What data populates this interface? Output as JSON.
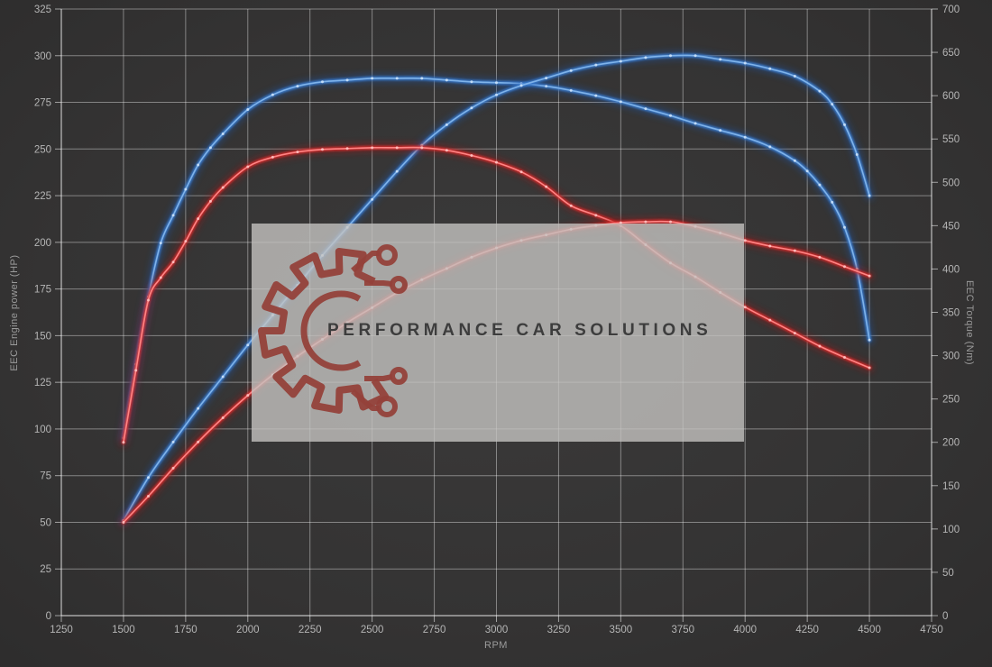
{
  "watermark": {
    "brand": "PERFORMANCE CAR SOLUTIONS"
  },
  "chart_data": {
    "type": "line",
    "title": "",
    "grid": true,
    "legend": "none",
    "x_axis": {
      "label": "RPM",
      "min": 1250,
      "max": 4750,
      "ticks": [
        1250,
        1500,
        1750,
        2000,
        2250,
        2500,
        2750,
        3000,
        3250,
        3500,
        3750,
        4000,
        4250,
        4500,
        4750
      ]
    },
    "y_left": {
      "label": "EEC Engine power (HP)",
      "min": 0,
      "max": 325,
      "ticks": [
        0,
        25,
        50,
        75,
        100,
        125,
        150,
        175,
        200,
        225,
        250,
        275,
        300,
        325
      ]
    },
    "y_right": {
      "label": "EEC Torque (Nm)",
      "min": 0,
      "max": 700,
      "ticks": [
        0,
        50,
        100,
        150,
        200,
        250,
        300,
        350,
        400,
        450,
        500,
        550,
        600,
        650,
        700
      ]
    },
    "series": [
      {
        "name": "blue-torque-curve",
        "axis": "right",
        "unit": "Nm",
        "color_glow": "#1d55a8",
        "color_mid": "#3b7ed2",
        "color_core": "#7fb3ea",
        "color_marker": "#cfe4fa",
        "points": [
          [
            1500,
            205
          ],
          [
            1550,
            290
          ],
          [
            1600,
            368
          ],
          [
            1650,
            430
          ],
          [
            1700,
            462
          ],
          [
            1750,
            492
          ],
          [
            1800,
            520
          ],
          [
            1850,
            540
          ],
          [
            1900,
            556
          ],
          [
            2000,
            584
          ],
          [
            2100,
            601
          ],
          [
            2200,
            611
          ],
          [
            2300,
            616
          ],
          [
            2400,
            618
          ],
          [
            2500,
            620
          ],
          [
            2600,
            620
          ],
          [
            2700,
            620
          ],
          [
            2800,
            618
          ],
          [
            2900,
            616
          ],
          [
            3000,
            615
          ],
          [
            3100,
            614
          ],
          [
            3200,
            611
          ],
          [
            3300,
            606
          ],
          [
            3400,
            600
          ],
          [
            3500,
            593
          ],
          [
            3600,
            585
          ],
          [
            3700,
            577
          ],
          [
            3800,
            568
          ],
          [
            3900,
            560
          ],
          [
            4000,
            552
          ],
          [
            4100,
            541
          ],
          [
            4200,
            525
          ],
          [
            4250,
            513
          ],
          [
            4300,
            497
          ],
          [
            4350,
            477
          ],
          [
            4400,
            448
          ],
          [
            4450,
            400
          ],
          [
            4500,
            318
          ]
        ]
      },
      {
        "name": "blue-power-curve",
        "axis": "left",
        "unit": "HP",
        "color_glow": "#1d55a8",
        "color_mid": "#3b7ed2",
        "color_core": "#7fb3ea",
        "color_marker": "#cfe4fa",
        "points": [
          [
            1500,
            51
          ],
          [
            1600,
            74
          ],
          [
            1700,
            93
          ],
          [
            1800,
            111
          ],
          [
            1900,
            128
          ],
          [
            2000,
            145
          ],
          [
            2100,
            161
          ],
          [
            2200,
            177
          ],
          [
            2300,
            193
          ],
          [
            2400,
            208
          ],
          [
            2500,
            223
          ],
          [
            2600,
            238
          ],
          [
            2700,
            252
          ],
          [
            2800,
            263
          ],
          [
            2900,
            272
          ],
          [
            3000,
            279
          ],
          [
            3100,
            284
          ],
          [
            3200,
            288
          ],
          [
            3300,
            292
          ],
          [
            3400,
            295
          ],
          [
            3500,
            297
          ],
          [
            3600,
            299
          ],
          [
            3700,
            300
          ],
          [
            3800,
            300
          ],
          [
            3900,
            298
          ],
          [
            4000,
            296
          ],
          [
            4100,
            293
          ],
          [
            4200,
            289
          ],
          [
            4300,
            281
          ],
          [
            4350,
            274
          ],
          [
            4400,
            263
          ],
          [
            4450,
            247
          ],
          [
            4500,
            225
          ]
        ]
      },
      {
        "name": "red-torque-curve",
        "axis": "right",
        "unit": "Nm",
        "color_glow": "#a01414",
        "color_mid": "#d42a2a",
        "color_core": "#ff8484",
        "color_marker": "#ffc4c4",
        "points": [
          [
            1500,
            200
          ],
          [
            1550,
            283
          ],
          [
            1600,
            364
          ],
          [
            1650,
            390
          ],
          [
            1700,
            408
          ],
          [
            1750,
            432
          ],
          [
            1800,
            458
          ],
          [
            1850,
            478
          ],
          [
            1900,
            494
          ],
          [
            2000,
            518
          ],
          [
            2100,
            529
          ],
          [
            2200,
            535
          ],
          [
            2300,
            538
          ],
          [
            2400,
            539
          ],
          [
            2500,
            540
          ],
          [
            2600,
            540
          ],
          [
            2700,
            540
          ],
          [
            2800,
            537
          ],
          [
            2900,
            531
          ],
          [
            3000,
            523
          ],
          [
            3100,
            512
          ],
          [
            3200,
            495
          ],
          [
            3300,
            473
          ],
          [
            3400,
            462
          ],
          [
            3500,
            450
          ],
          [
            3600,
            428
          ],
          [
            3700,
            407
          ],
          [
            3800,
            391
          ],
          [
            3900,
            373
          ],
          [
            4000,
            356
          ],
          [
            4100,
            341
          ],
          [
            4200,
            326
          ],
          [
            4300,
            311
          ],
          [
            4400,
            298
          ],
          [
            4500,
            286
          ]
        ]
      },
      {
        "name": "red-power-curve",
        "axis": "left",
        "unit": "HP",
        "color_glow": "#a01414",
        "color_mid": "#d42a2a",
        "color_core": "#ff8484",
        "color_marker": "#ffc4c4",
        "points": [
          [
            1500,
            50
          ],
          [
            1600,
            64
          ],
          [
            1700,
            79
          ],
          [
            1800,
            93
          ],
          [
            1900,
            106
          ],
          [
            2000,
            118
          ],
          [
            2100,
            129
          ],
          [
            2200,
            139
          ],
          [
            2300,
            148
          ],
          [
            2400,
            157
          ],
          [
            2500,
            165
          ],
          [
            2600,
            173
          ],
          [
            2700,
            180
          ],
          [
            2800,
            186
          ],
          [
            2900,
            192
          ],
          [
            3000,
            197
          ],
          [
            3100,
            201
          ],
          [
            3200,
            204
          ],
          [
            3300,
            207
          ],
          [
            3400,
            209
          ],
          [
            3500,
            210.5
          ],
          [
            3600,
            211
          ],
          [
            3700,
            211
          ],
          [
            3800,
            208.5
          ],
          [
            3900,
            205
          ],
          [
            4000,
            201
          ],
          [
            4100,
            198
          ],
          [
            4200,
            195.5
          ],
          [
            4300,
            192
          ],
          [
            4400,
            187
          ],
          [
            4500,
            182
          ]
        ]
      }
    ],
    "style": {
      "grid_color": "rgba(255,255,255,0.40)",
      "spine_color": "rgba(255,255,255,0.55)",
      "tick_color": "#b5b5b5",
      "logo_color": "#93413a",
      "watermark_bg": "rgba(196,195,192,0.80)"
    }
  }
}
